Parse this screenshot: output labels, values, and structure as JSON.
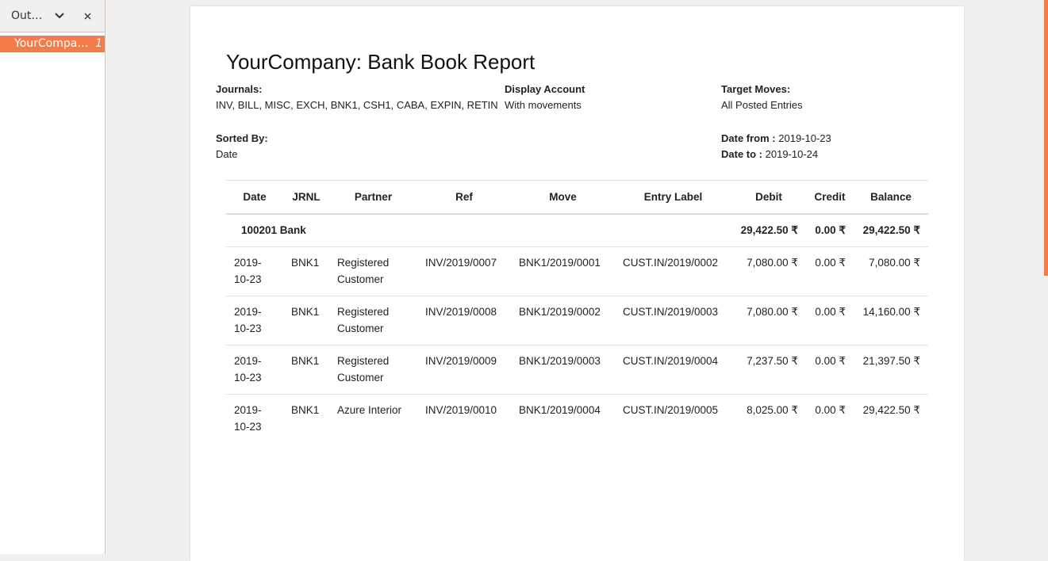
{
  "sidebar": {
    "title": "Out…",
    "item": "YourCompa…",
    "item_page": "1"
  },
  "report": {
    "title": "YourCompany: Bank Book Report",
    "filters": [
      {
        "label": "Journals:",
        "value": "INV, BILL, MISC, EXCH, BNK1, CSH1, CABA, EXPIN, RETIN"
      },
      {
        "label": "Display Account",
        "value": "With movements"
      },
      {
        "label": "Target Moves:",
        "value": "All Posted Entries"
      },
      {
        "label": "Sorted By:",
        "value": "Date"
      },
      {
        "label": "Date from :",
        "value": "2019-10-23"
      },
      {
        "label": "Date to :",
        "value": "2019-10-24"
      }
    ],
    "table": {
      "headers": [
        "Date",
        "JRNL",
        "Partner",
        "Ref",
        "Move",
        "Entry Label",
        "Debit",
        "Credit",
        "Balance"
      ],
      "group": {
        "account": "100201 Bank",
        "debit": "29,422.50 ₹",
        "credit": "0.00 ₹",
        "balance": "29,422.50 ₹"
      },
      "rows": [
        [
          "2019-10-23",
          "BNK1",
          "Registered Customer",
          "INV/2019/0007",
          "BNK1/2019/0001",
          "CUST.IN/2019/0002",
          "7,080.00 ₹",
          "0.00 ₹",
          "7,080.00 ₹"
        ],
        [
          "2019-10-23",
          "BNK1",
          "Registered Customer",
          "INV/2019/0008",
          "BNK1/2019/0002",
          "CUST.IN/2019/0003",
          "7,080.00 ₹",
          "0.00 ₹",
          "14,160.00 ₹"
        ],
        [
          "2019-10-23",
          "BNK1",
          "Registered Customer",
          "INV/2019/0009",
          "BNK1/2019/0003",
          "CUST.IN/2019/0004",
          "7,237.50 ₹",
          "0.00 ₹",
          "21,397.50 ₹"
        ],
        [
          "2019-10-23",
          "BNK1",
          "Azure Interior",
          "INV/2019/0010",
          "BNK1/2019/0004",
          "CUST.IN/2019/0005",
          "8,025.00 ₹",
          "0.00 ₹",
          "29,422.50 ₹"
        ]
      ]
    }
  }
}
